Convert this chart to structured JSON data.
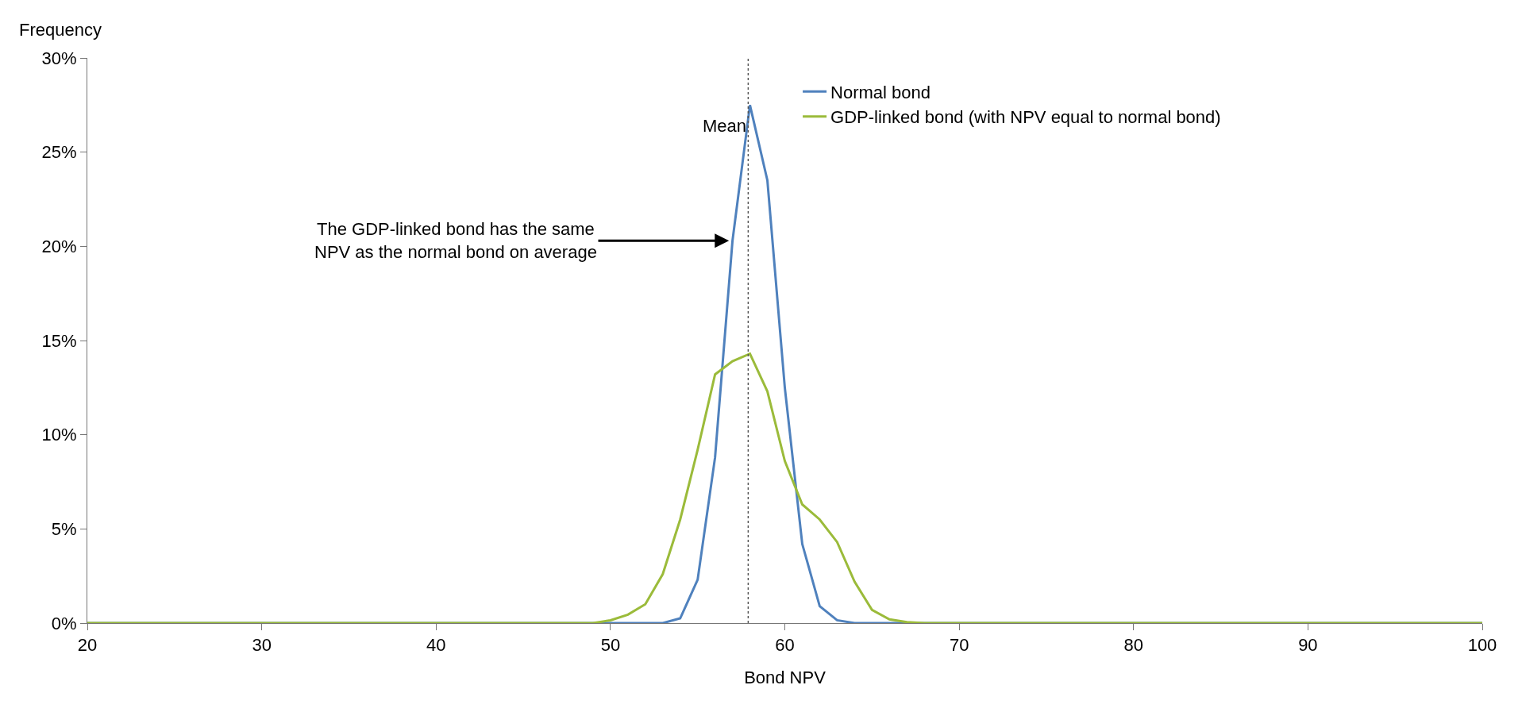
{
  "chart_data": {
    "type": "line",
    "xlabel": "Bond NPV",
    "ylabel": "Frequency",
    "xlim": [
      20,
      100
    ],
    "xticks": [
      20,
      30,
      40,
      50,
      60,
      70,
      80,
      90,
      100
    ],
    "ylim": [
      0,
      30
    ],
    "yticks": [
      {
        "value": 0,
        "label": "0%"
      },
      {
        "value": 5,
        "label": "5%"
      },
      {
        "value": 10,
        "label": "10%"
      },
      {
        "value": 15,
        "label": "15%"
      },
      {
        "value": 20,
        "label": "20%"
      },
      {
        "value": 25,
        "label": "25%"
      },
      {
        "value": 30,
        "label": "30%"
      }
    ],
    "series": [
      {
        "name": "Normal bond",
        "color": "#4f81bd",
        "x": [
          20,
          53,
          54,
          55,
          56,
          57,
          58,
          59,
          60,
          61,
          62,
          63,
          64,
          100
        ],
        "values": [
          0,
          0,
          0.25,
          2.3,
          8.8,
          20.3,
          27.5,
          23.5,
          12.5,
          4.2,
          0.9,
          0.15,
          0,
          0
        ]
      },
      {
        "name": "GDP-linked bond (with NPV equal to normal bond)",
        "color": "#9bbb3a",
        "x": [
          20,
          49,
          50,
          51,
          52,
          53,
          54,
          55,
          56,
          57,
          58,
          59,
          60,
          61,
          62,
          63,
          64,
          65,
          66,
          67,
          68,
          100
        ],
        "values": [
          0,
          0,
          0.15,
          0.45,
          1,
          2.6,
          5.5,
          9.2,
          13.2,
          13.9,
          14.3,
          12.3,
          8.6,
          6.3,
          5.5,
          4.3,
          2.2,
          0.7,
          0.2,
          0.05,
          0,
          0
        ]
      }
    ],
    "ref_lines": [
      {
        "axis": "x",
        "value": 57.9,
        "label": "Mean",
        "color": "#555555",
        "line_style": "dotted"
      }
    ],
    "annotations": [
      {
        "text": "The GDP-linked bond has the same\nNPV as the normal bond on average",
        "x": 56.8,
        "y": 20.3
      }
    ],
    "legend": "top right",
    "grid": false,
    "marker": "none",
    "line_style": "solid"
  }
}
